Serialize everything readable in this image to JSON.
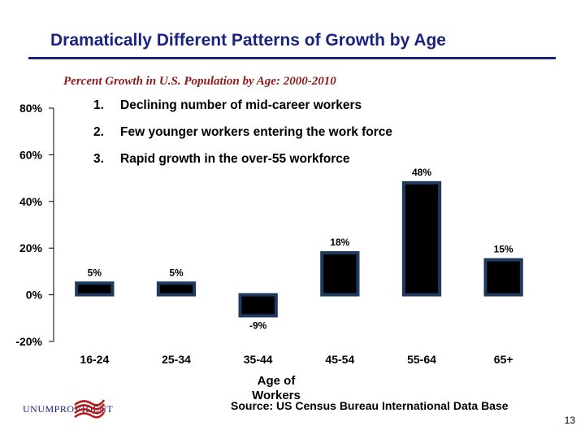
{
  "title": "Dramatically Different Patterns of Growth by Age",
  "subtitle": "Percent Growth in U.S. Population by Age: 2000-2010",
  "notes": [
    {
      "num": "1.",
      "text": "Declining number of mid-career workers"
    },
    {
      "num": "2.",
      "text": "Few younger workers entering the work force"
    },
    {
      "num": "3.",
      "text": "Rapid growth in the over-55 workforce"
    }
  ],
  "source": "Source: US Census Bureau International Data Base",
  "page_number": "13",
  "logo": {
    "text": "UNUMPROVIDENT",
    "icon": "flag-icon"
  },
  "colors": {
    "title": "#1a237e",
    "subtitle": "#8b1a1a",
    "bar_fill": "#000000",
    "bar_border": "#1f3a5f"
  },
  "chart_data": {
    "type": "bar",
    "title": "Percent Growth in U.S. Population by Age: 2000-2010",
    "xlabel": "Age of Workers",
    "ylabel": "",
    "categories": [
      "16-24",
      "25-34",
      "35-44",
      "45-54",
      "55-64",
      "65+"
    ],
    "values": [
      5,
      5,
      -9,
      18,
      48,
      15
    ],
    "data_labels": [
      "5%",
      "5%",
      "-9%",
      "18%",
      "48%",
      "15%"
    ],
    "ylim": [
      -20,
      80
    ],
    "yticks": [
      -20,
      0,
      20,
      40,
      60,
      80
    ],
    "ytick_labels": [
      "-20%",
      "0%",
      "20%",
      "40%",
      "60%",
      "80%"
    ],
    "grid": false,
    "legend": "none"
  }
}
